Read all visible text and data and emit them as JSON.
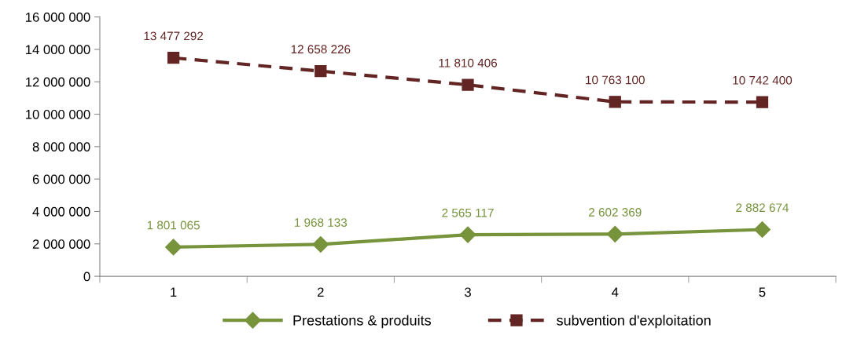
{
  "chart_data": {
    "type": "line",
    "categories": [
      "1",
      "2",
      "3",
      "4",
      "5"
    ],
    "series": [
      {
        "name": "Prestations & produits",
        "color": "#77933c",
        "marker": "diamond",
        "line_style": "solid",
        "values": [
          1801065,
          1968133,
          2565117,
          2602369,
          2882674
        ],
        "value_labels": [
          "1 801 065",
          "1 968 133",
          "2 565 117",
          "2 602 369",
          "2 882 674"
        ]
      },
      {
        "name": "subvention d'exploitation",
        "color": "#632523",
        "marker": "square",
        "line_style": "dashed",
        "values": [
          13477292,
          12658226,
          11810406,
          10763100,
          10742400
        ],
        "value_labels": [
          "13 477 292",
          "12 658 226",
          "11 810 406",
          "10 763 100",
          "10 742 400"
        ]
      }
    ],
    "ylim": [
      0,
      16000000
    ],
    "yticks": [
      0,
      {
        "value": 2000000,
        "label": "2 000 000"
      },
      {
        "value": 4000000,
        "label": "4 000 000"
      },
      {
        "value": 6000000,
        "label": "6 000 000"
      },
      {
        "value": 8000000,
        "label": "8 000 000"
      },
      {
        "value": 10000000,
        "label": "10 000 000"
      },
      {
        "value": 12000000,
        "label": "12 000 000"
      },
      {
        "value": 14000000,
        "label": "14 000 000"
      },
      {
        "value": 16000000,
        "label": "16 000 000"
      }
    ],
    "grid": false,
    "legend": "bottom"
  }
}
